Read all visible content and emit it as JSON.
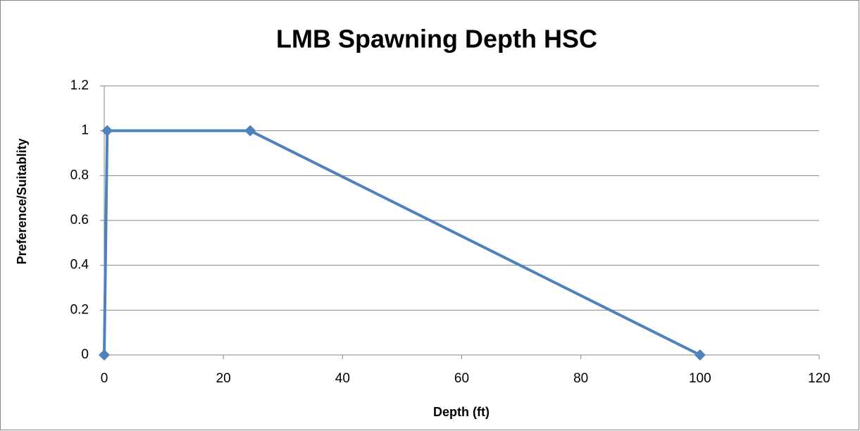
{
  "chart_data": {
    "type": "line",
    "title": "LMB Spawning Depth HSC",
    "x_label": "Depth (ft)",
    "y_label": "Preference/Suitablity",
    "x": [
      0,
      0.5,
      24.5,
      100
    ],
    "series": [
      {
        "values": [
          0,
          1,
          1,
          0
        ],
        "color": "#4f81bd"
      }
    ],
    "xlim": [
      0,
      120
    ],
    "xticks": [
      0,
      20,
      40,
      60,
      80,
      100,
      120
    ],
    "ylim": [
      0,
      1.2
    ],
    "yticks": [
      0,
      0.2,
      0.4,
      0.6,
      0.8,
      1,
      1.2
    ],
    "grid": true
  }
}
